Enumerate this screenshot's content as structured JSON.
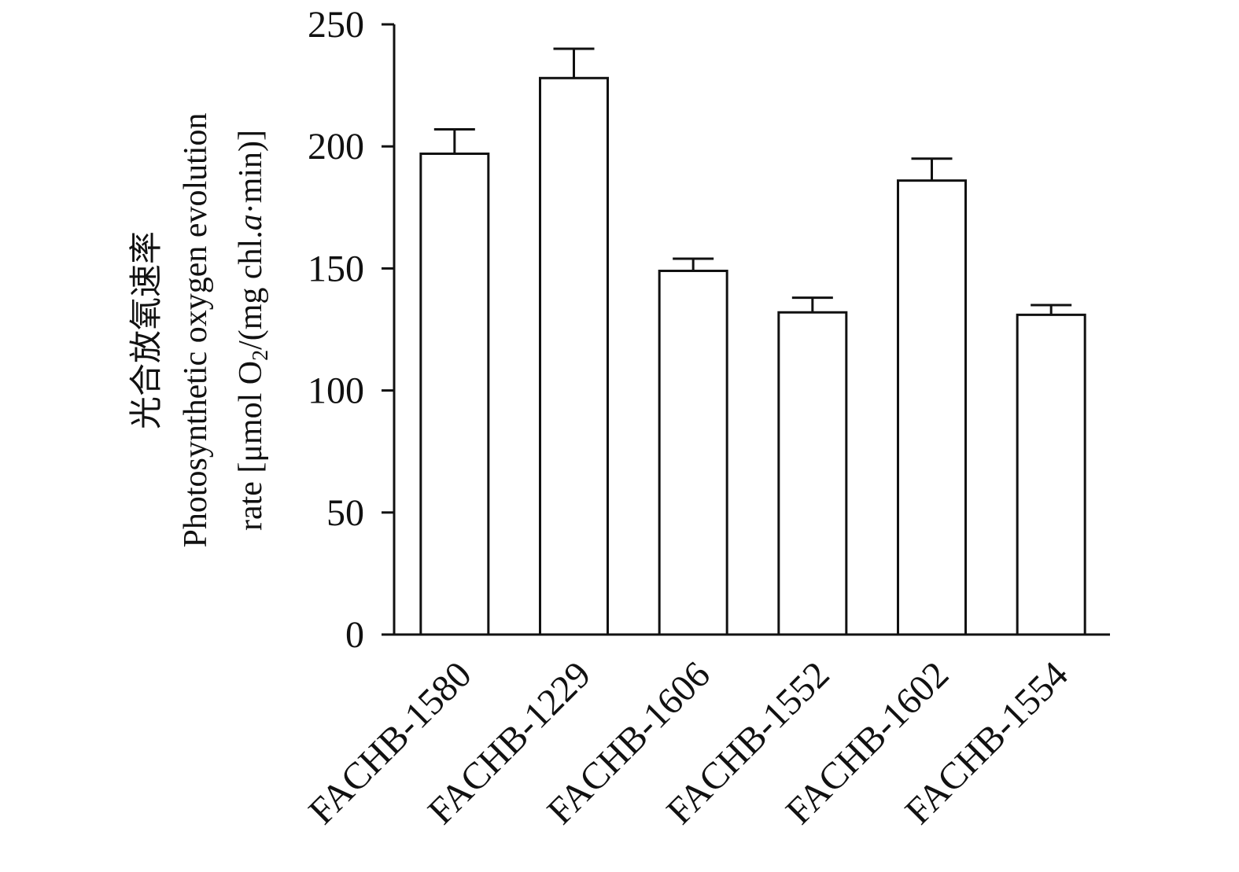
{
  "chart_data": {
    "type": "bar",
    "categories": [
      "FACHB-1580",
      "FACHB-1229",
      "FACHB-1606",
      "FACHB-1552",
      "FACHB-1602",
      "FACHB-1554"
    ],
    "values": [
      197,
      228,
      149,
      132,
      186,
      131
    ],
    "errors": [
      10,
      12,
      5,
      6,
      9,
      4
    ],
    "xlabel": "",
    "ylabel_lines": [
      "光合放氧速率",
      "Photosynthetic oxygen evolution",
      "rate [μmol O",
      "2",
      "/(mg chl.",
      "a",
      "·min)]"
    ],
    "ylim": [
      0,
      250
    ],
    "yticks": [
      "0",
      "50",
      "100",
      "150",
      "200",
      "250"
    ],
    "ytick_values": [
      0,
      50,
      100,
      150,
      200,
      250
    ],
    "grid": false,
    "legend": "none",
    "colors": {
      "bar_fill": "#ffffff",
      "stroke": "#111111"
    }
  }
}
